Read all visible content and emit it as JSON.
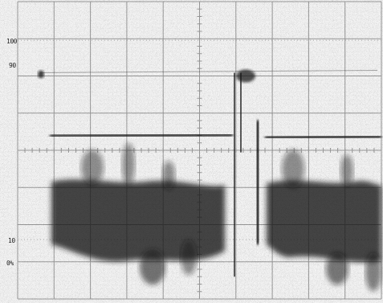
{
  "screen": {
    "background": "#f4f4f4",
    "ink": "#1a1a1a",
    "grid_color": "#9a9a9a"
  },
  "graticule": {
    "major_divisions_x": 10,
    "major_divisions_y": 8,
    "center_ticks": true
  },
  "margin_labels": {
    "label_100": "100",
    "label_90": "90",
    "label_10": "10",
    "label_0": "0%"
  },
  "trace_levels_fraction_of_height": {
    "marker_90": 0.24,
    "upper_level": 0.45,
    "ringing_band_top": 0.6,
    "ringing_band_bottom": 0.86
  }
}
